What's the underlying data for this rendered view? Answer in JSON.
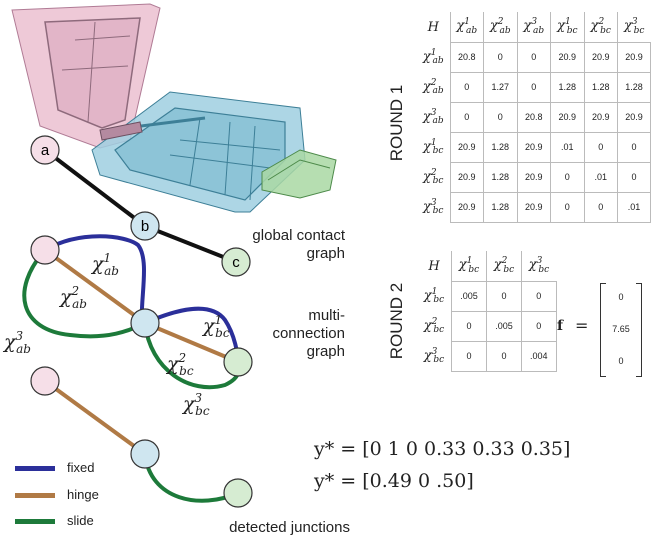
{
  "labels": {
    "global_contact_graph": "global contact\ngraph",
    "multi_connection_graph": "multi-\nconnection\ngraph",
    "detected_junctions": "detected junctions"
  },
  "nodes": {
    "a": "a",
    "b": "b",
    "c": "c"
  },
  "legend": [
    {
      "label": "fixed",
      "color": "#2b2f9a"
    },
    {
      "label": "hinge",
      "color": "#b07a45"
    },
    {
      "label": "slide",
      "color": "#1d7a3a"
    }
  ],
  "round1": {
    "title": "ROUND 1",
    "corner": "H",
    "cols": [
      {
        "base": "χ",
        "sup": "1",
        "sub": "ab"
      },
      {
        "base": "χ",
        "sup": "2",
        "sub": "ab"
      },
      {
        "base": "χ",
        "sup": "3",
        "sub": "ab"
      },
      {
        "base": "χ",
        "sup": "1",
        "sub": "bc"
      },
      {
        "base": "χ",
        "sup": "2",
        "sub": "bc"
      },
      {
        "base": "χ",
        "sup": "3",
        "sub": "bc"
      }
    ],
    "rows": [
      [
        "20.8",
        "0",
        "0",
        "20.9",
        "20.9",
        "20.9"
      ],
      [
        "0",
        "1.27",
        "0",
        "1.28",
        "1.28",
        "1.28"
      ],
      [
        "0",
        "0",
        "20.8",
        "20.9",
        "20.9",
        "20.9"
      ],
      [
        "20.9",
        "1.28",
        "20.9",
        ".01",
        "0",
        "0"
      ],
      [
        "20.9",
        "1.28",
        "20.9",
        "0",
        ".01",
        "0"
      ],
      [
        "20.9",
        "1.28",
        "20.9",
        "0",
        "0",
        ".01"
      ]
    ]
  },
  "round2": {
    "title": "ROUND 2",
    "corner": "H",
    "cols": [
      {
        "base": "χ",
        "sup": "1",
        "sub": "bc"
      },
      {
        "base": "χ",
        "sup": "2",
        "sub": "bc"
      },
      {
        "base": "χ",
        "sup": "3",
        "sub": "bc"
      }
    ],
    "rows": [
      [
        ".005",
        "0",
        "0"
      ],
      [
        "0",
        ".005",
        "0"
      ],
      [
        "0",
        "0",
        ".004"
      ]
    ],
    "f_label": "f",
    "f_values": [
      "0",
      "7.65",
      "0"
    ]
  },
  "edge_labels": {
    "ab1": {
      "base": "χ",
      "sup": "1",
      "sub": "ab"
    },
    "ab2": {
      "base": "χ",
      "sup": "2",
      "sub": "ab"
    },
    "ab3": {
      "base": "χ",
      "sup": "3",
      "sub": "ab"
    },
    "bc1": {
      "base": "χ",
      "sup": "1",
      "sub": "bc"
    },
    "bc2": {
      "base": "χ",
      "sup": "2",
      "sub": "bc"
    },
    "bc3": {
      "base": "χ",
      "sup": "3",
      "sub": "bc"
    }
  },
  "results": {
    "y1": "y* = [0  1  0  0.33  0.33  0.35]",
    "y2": "y* = [0.49  0  .50]"
  }
}
